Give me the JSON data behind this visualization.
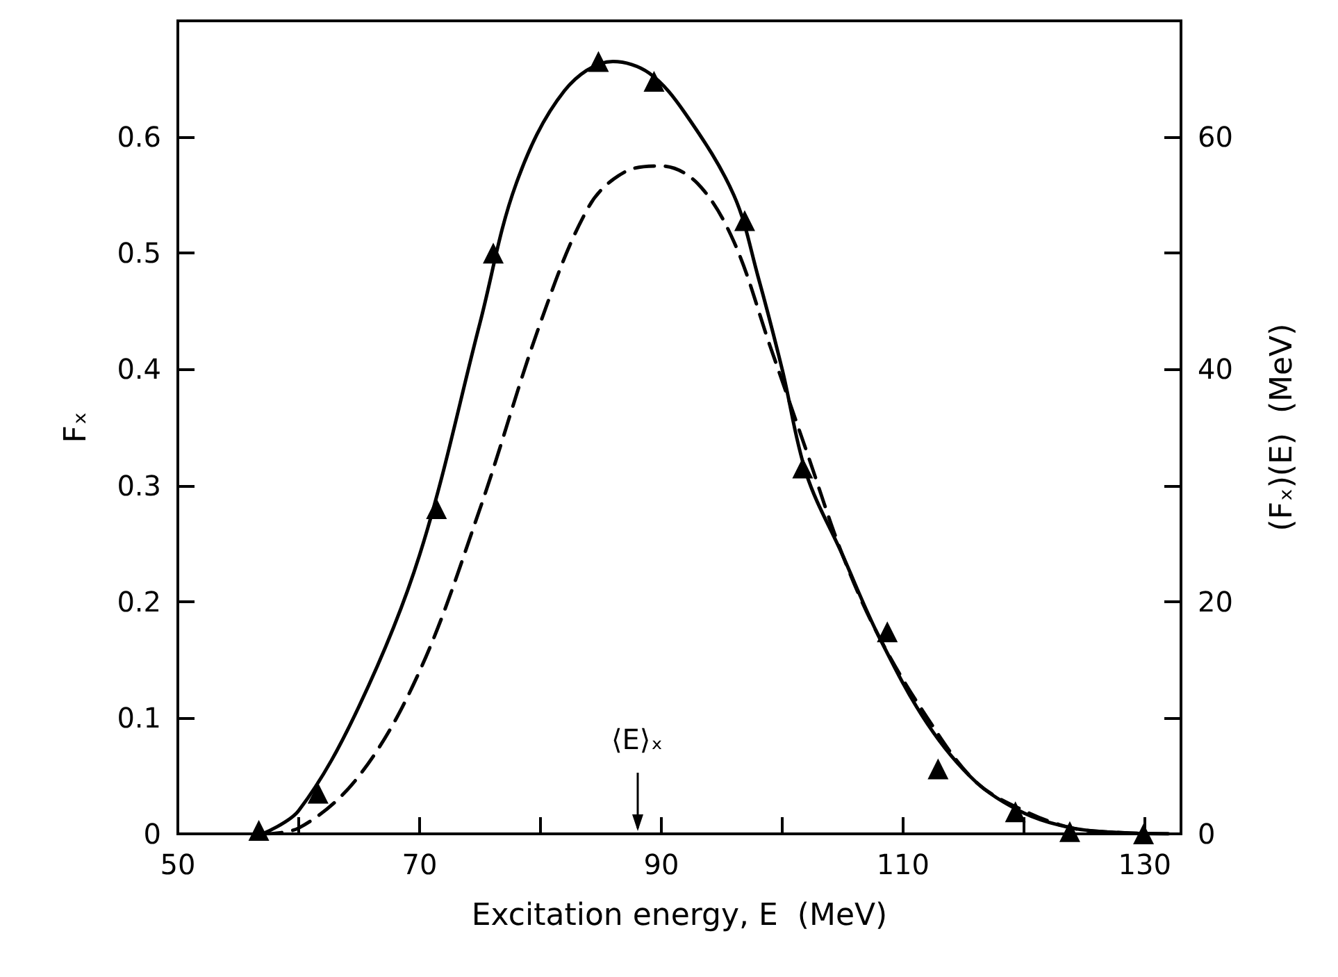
{
  "chart_data": {
    "type": "line",
    "xlabel": "Excitation energy, E  (MeV)",
    "ylabel": "Fₓ",
    "y2label": "(Fₓ)(E)  (MeV)",
    "xlim": [
      50,
      133
    ],
    "xticks": [
      50,
      {
        "value": 60,
        "label": null
      },
      70,
      {
        "value": 80,
        "label": null
      },
      90,
      {
        "value": 100,
        "label": null
      },
      110,
      {
        "value": 120,
        "label": null
      },
      130
    ],
    "ylim": [
      0,
      0.7
    ],
    "yticks": [
      0,
      0.1,
      0.2,
      0.3,
      0.4,
      0.5,
      0.6
    ],
    "y2lim": [
      0,
      70
    ],
    "y2ticks": [
      0,
      {
        "value": 10,
        "label": null
      },
      20,
      {
        "value": 30,
        "label": null
      },
      40,
      {
        "value": 50,
        "label": null
      },
      60
    ],
    "grid": false,
    "ref_lines": [
      {
        "axis": "x",
        "value": 88,
        "label": "⟨E⟩ₓ"
      }
    ],
    "series": [
      {
        "type": "scatter",
        "marker": "triangle",
        "color": "#000000",
        "x": [
          56.7,
          61.6,
          71.4,
          76.1,
          84.8,
          89.4,
          96.9,
          101.7,
          108.7,
          112.9,
          119.3,
          123.8,
          129.9
        ],
        "values": [
          0.003,
          0.035,
          0.28,
          0.5,
          0.665,
          0.648,
          0.528,
          0.315,
          0.174,
          0.056,
          0.019,
          0.002,
          0
        ]
      },
      {
        "marker": "none",
        "line_style": "solid",
        "color": "#000000",
        "x": [
          57,
          60,
          65,
          70,
          75,
          78,
          82,
          86,
          89,
          92,
          96,
          98,
          100,
          102,
          105,
          108,
          112,
          116,
          120,
          124,
          128,
          132
        ],
        "values": [
          0,
          0.02,
          0.11,
          0.24,
          0.44,
          0.56,
          0.64,
          0.665,
          0.655,
          0.62,
          0.55,
          0.48,
          0.4,
          0.31,
          0.24,
          0.17,
          0.095,
          0.045,
          0.018,
          0.005,
          0.001,
          0
        ]
      },
      {
        "marker": "none",
        "line_style": "dashed",
        "axis": "y2",
        "color": "#000000",
        "x": [
          57,
          60,
          65,
          70,
          75,
          80,
          84,
          87,
          90,
          93,
          96,
          99,
          102,
          105,
          108,
          112,
          116,
          120,
          124,
          128,
          132
        ],
        "values": [
          0,
          0.5,
          5,
          14,
          28,
          44,
          54,
          57,
          57.5,
          56,
          51,
          42,
          33,
          24,
          17,
          10,
          4.5,
          2,
          0.5,
          0.1,
          0
        ]
      }
    ]
  }
}
